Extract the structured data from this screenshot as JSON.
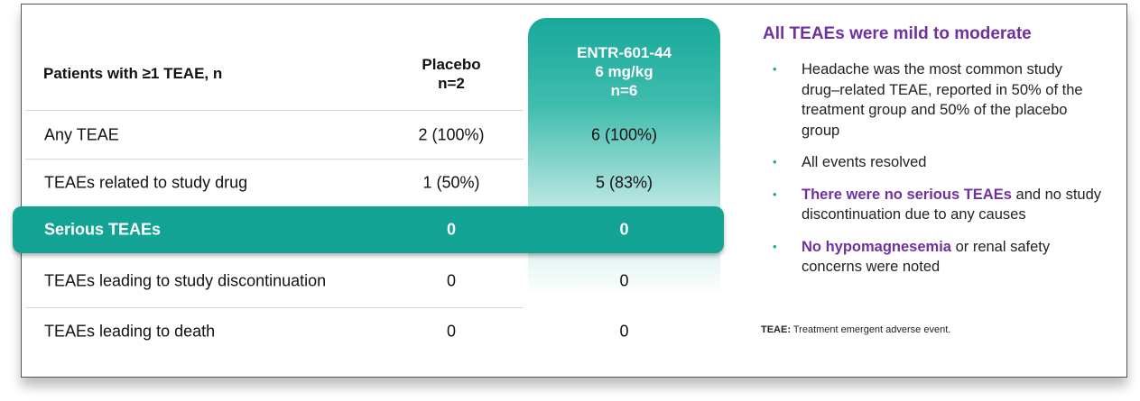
{
  "table": {
    "header": {
      "label": "Patients with ≥1 TEAE, n",
      "columns": [
        [
          "Placebo",
          "n=2"
        ],
        [
          "ENTR-601-44",
          "6 mg/kg",
          "n=6"
        ]
      ]
    },
    "rows": [
      {
        "label": "Any TEAE",
        "values": [
          "2 (100%)",
          "6 (100%)"
        ]
      },
      {
        "label": "TEAEs related to study drug",
        "values": [
          "1 (50%)",
          "5 (83%)"
        ]
      },
      {
        "label": "Serious TEAEs",
        "values": [
          "0",
          "0"
        ]
      },
      {
        "label": "TEAEs leading to study discontinuation",
        "values": [
          "0",
          "0"
        ]
      },
      {
        "label": "TEAEs leading to death",
        "values": [
          "0",
          "0"
        ]
      }
    ]
  },
  "summary": {
    "title": "All TEAEs were mild to moderate",
    "bullets": [
      [
        "Headache was the most common study drug–related TEAE, reported in 50% of the treatment group and 50% of the placebo group"
      ],
      [
        "All events resolved"
      ],
      [
        "There were no serious TEAEs",
        "and no study discontinuation due to any causes"
      ],
      [
        "No hypomagnesemia",
        "or renal safety concerns were noted"
      ]
    ]
  },
  "footnote": {
    "term": "TEAE:",
    "text": "Treatment emergent adverse event."
  }
}
